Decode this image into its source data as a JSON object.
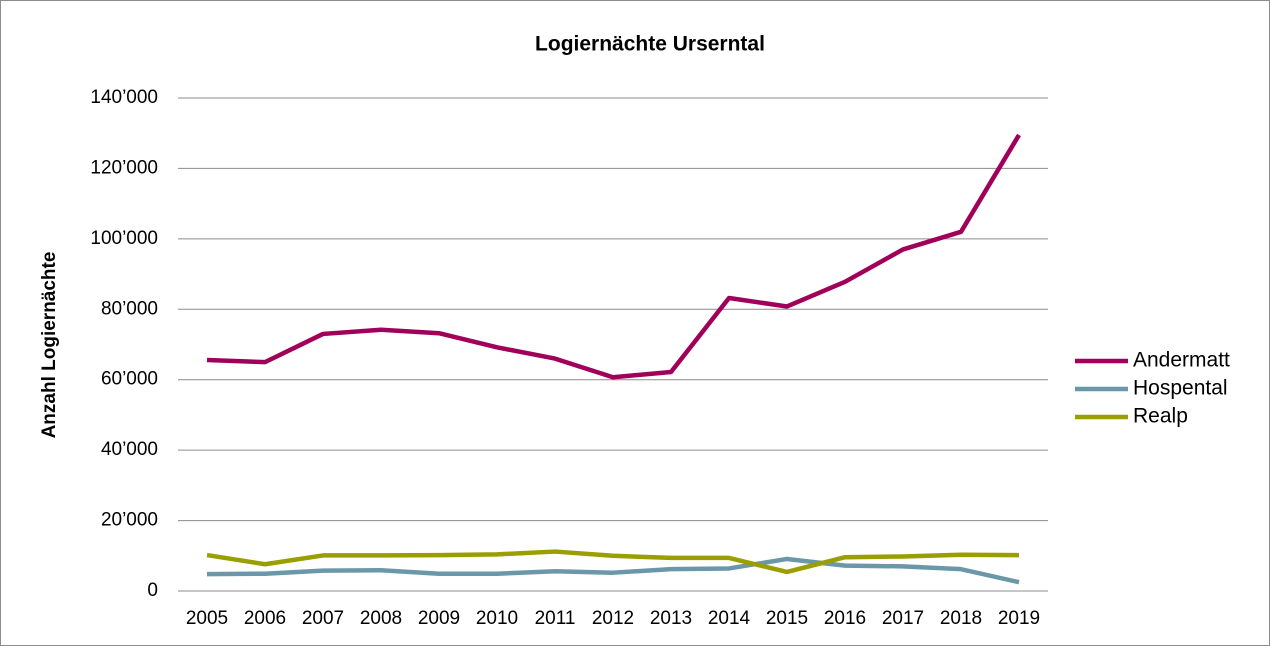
{
  "chart_data": {
    "type": "line",
    "title": "Logiernächte Urserntal",
    "y_label": "Anzahl Logiernächte",
    "categories": [
      "2005",
      "2006",
      "2007",
      "2008",
      "2009",
      "2010",
      "2011",
      "2012",
      "2013",
      "2014",
      "2015",
      "2016",
      "2017",
      "2018",
      "2019"
    ],
    "series": [
      {
        "name": "Andermatt",
        "color": "#a0005a",
        "values": [
          65600,
          65000,
          73000,
          74200,
          73200,
          69200,
          66000,
          60700,
          62200,
          83200,
          80800,
          87800,
          97000,
          102000,
          129500
        ]
      },
      {
        "name": "Hospental",
        "color": "#6b98a8",
        "values": [
          4800,
          4900,
          5800,
          5900,
          4900,
          4900,
          5600,
          5200,
          6200,
          6400,
          9100,
          7200,
          7000,
          6200,
          2500
        ]
      },
      {
        "name": "Realp",
        "color": "#9a9e00",
        "values": [
          10200,
          7600,
          10100,
          10100,
          10200,
          10400,
          11200,
          10000,
          9400,
          9400,
          5400,
          9600,
          9800,
          10300,
          10200
        ]
      }
    ],
    "ylim": [
      0,
      140000
    ],
    "yticks": [
      0,
      {
        "value": 20000,
        "label": "20’000"
      },
      {
        "value": 40000,
        "label": "40’000"
      },
      {
        "value": 60000,
        "label": "60’000"
      },
      {
        "value": 80000,
        "label": "80’000"
      },
      {
        "value": 100000,
        "label": "100’000"
      },
      {
        "value": 120000,
        "label": "120’000"
      },
      {
        "value": 140000,
        "label": "140’000"
      }
    ],
    "grid": true,
    "legend": "right"
  }
}
